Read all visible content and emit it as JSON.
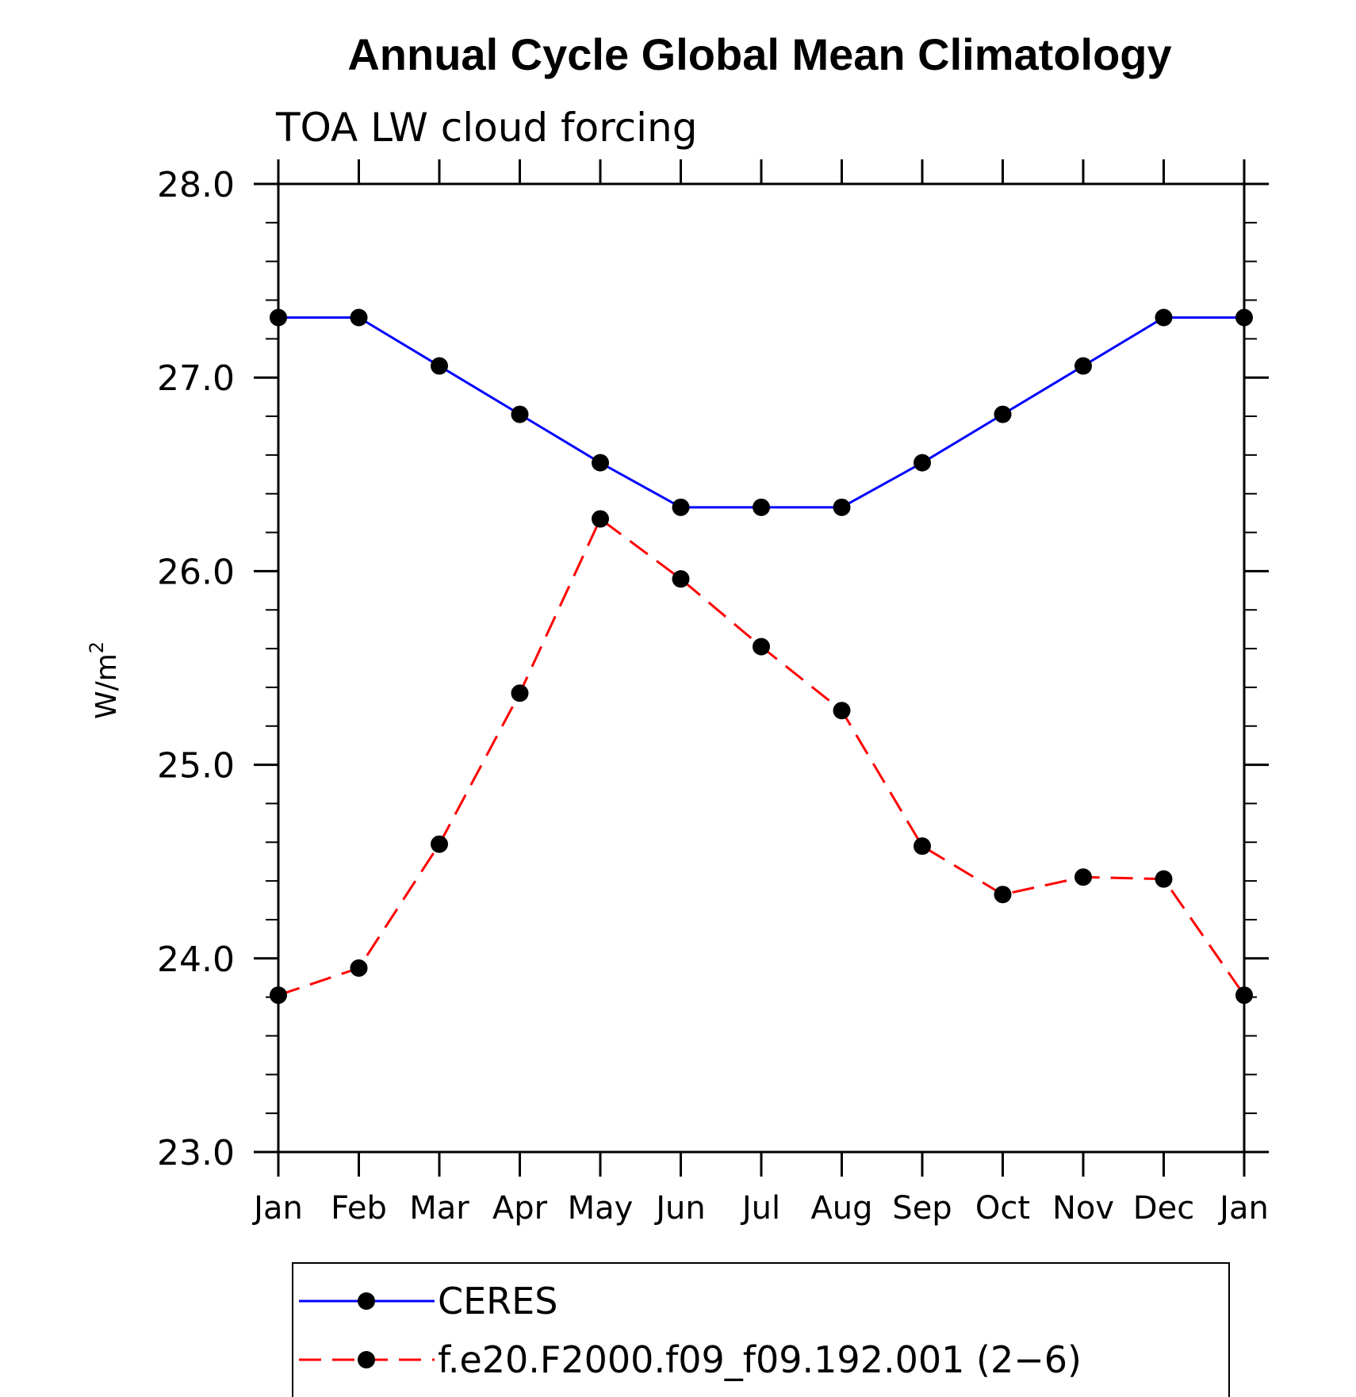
{
  "chart_data": {
    "type": "line",
    "title": "Annual Cycle Global Mean Climatology",
    "subtitle": "TOA LW cloud forcing",
    "ylabel": "W/m",
    "ylabel_superscript": "2",
    "ylim": [
      23.0,
      28.0
    ],
    "yticks": [
      "23.0",
      "24.0",
      "25.0",
      "26.0",
      "27.0",
      "28.0"
    ],
    "categories": [
      "Jan",
      "Feb",
      "Mar",
      "Apr",
      "May",
      "Jun",
      "Jul",
      "Aug",
      "Sep",
      "Oct",
      "Nov",
      "Dec",
      "Jan"
    ],
    "grid": false,
    "legend_position": "bottom",
    "series": [
      {
        "name": "CERES",
        "color": "#0000ff",
        "line_style": "solid",
        "marker": "filled-circle",
        "values": [
          27.31,
          27.31,
          27.06,
          26.81,
          26.56,
          26.33,
          26.33,
          26.33,
          26.56,
          26.81,
          27.06,
          27.31,
          27.31
        ]
      },
      {
        "name": "f.e20.F2000.f09_f09.192.001 (2−6)",
        "color": "#ff0000",
        "line_style": "dashed",
        "marker": "filled-circle",
        "values": [
          23.81,
          23.95,
          24.59,
          25.37,
          26.27,
          25.96,
          25.61,
          25.28,
          24.58,
          24.33,
          24.42,
          24.41,
          23.81
        ]
      }
    ]
  }
}
